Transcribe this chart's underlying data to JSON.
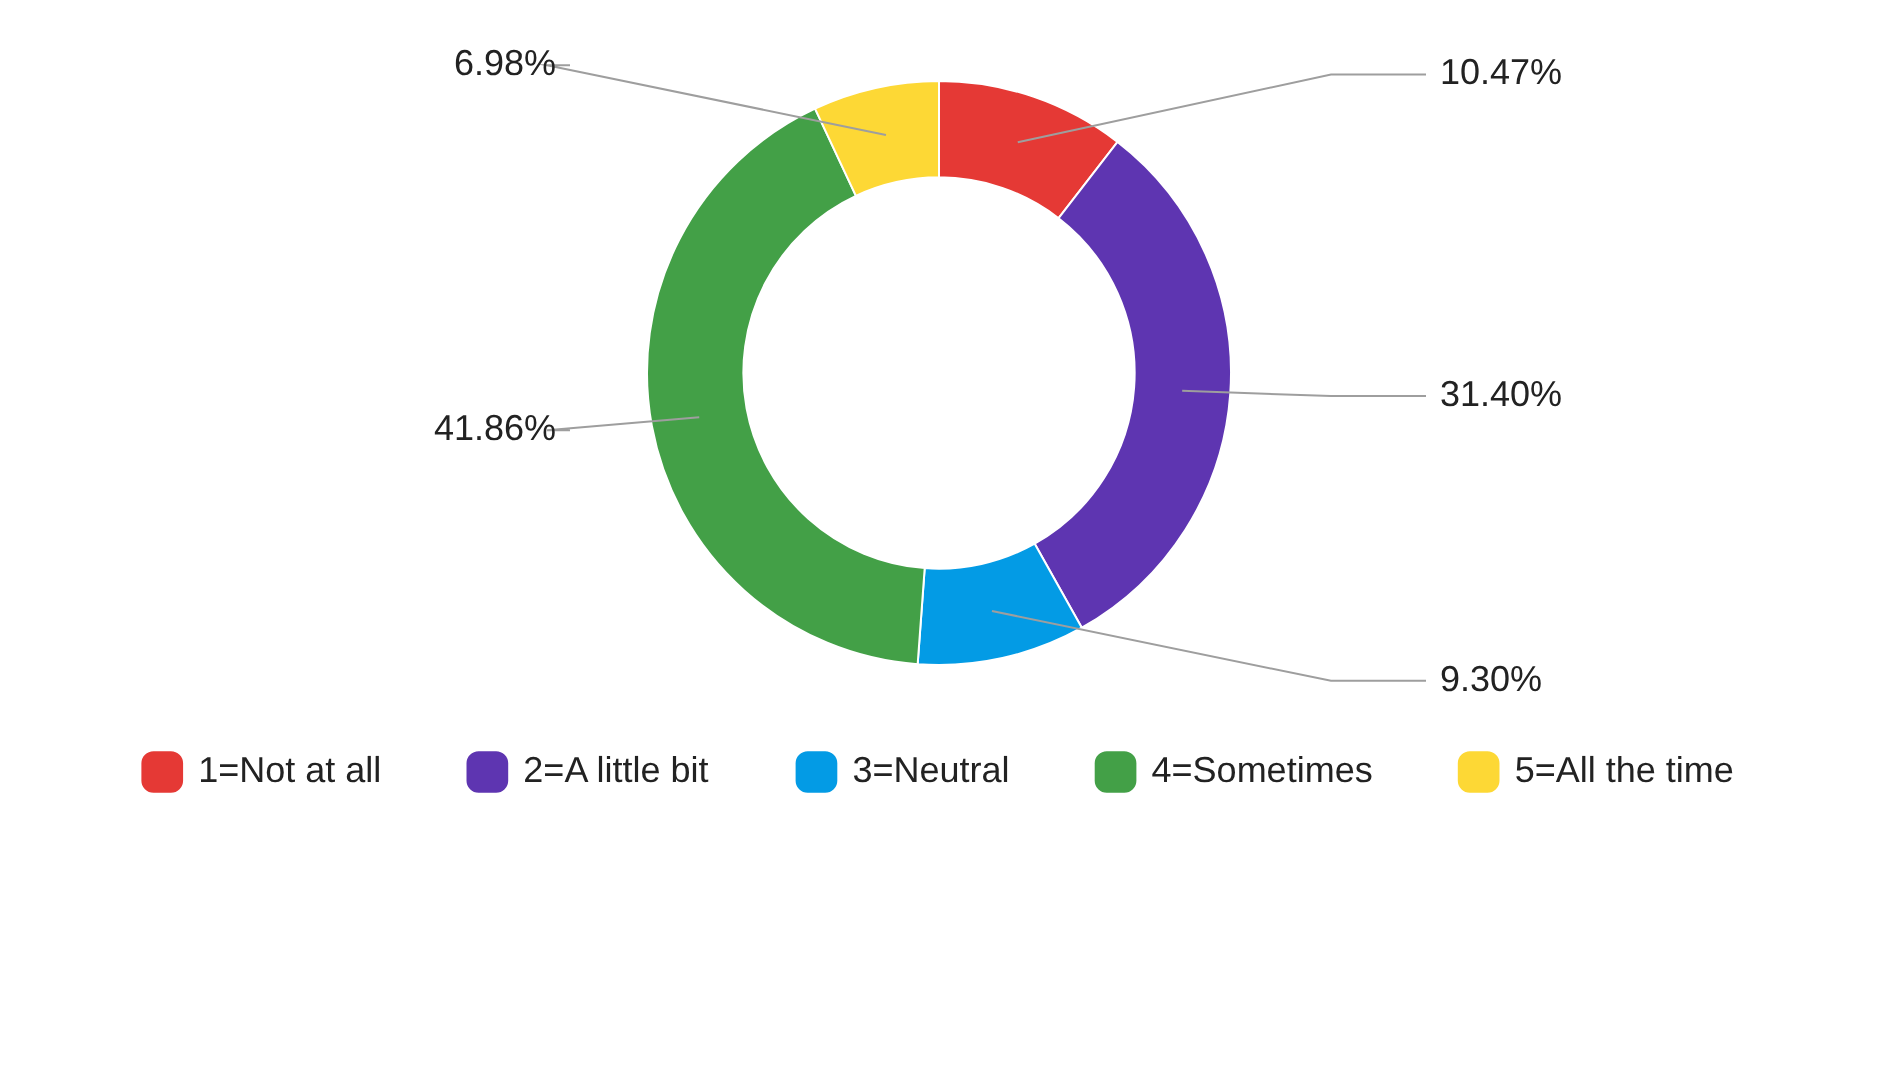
{
  "chart_data": {
    "type": "donut",
    "categories": [
      "1=Not at all",
      "2=A little bit",
      "3=Neutral",
      "4=Sometimes",
      "5=All the time"
    ],
    "values": [
      10.47,
      31.4,
      9.3,
      41.86,
      6.98
    ],
    "value_labels": [
      "10.47%",
      "31.40%",
      "9.30%",
      "41.86%",
      "6.98%"
    ],
    "colors": [
      "#e53935",
      "#5e35b1",
      "#039be5",
      "#43a047",
      "#fdd835"
    ],
    "legend": "bottom"
  }
}
